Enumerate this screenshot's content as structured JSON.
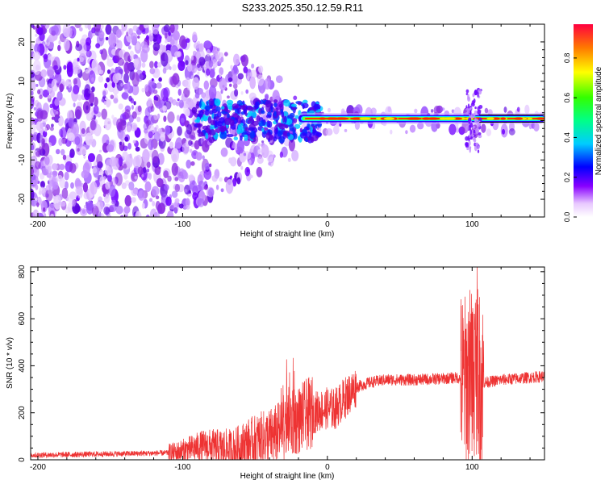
{
  "title": "S233.2025.350.12.59.R11",
  "chart_data": [
    {
      "type": "heatmap",
      "xlabel": "Height of straight line (km)",
      "ylabel": "Frequency (Hz)",
      "xlim": [
        -205,
        150
      ],
      "ylim": [
        -24.5,
        24.5
      ],
      "x_ticks": [
        -200,
        -100,
        0,
        100
      ],
      "y_ticks": [
        -20,
        -10,
        0,
        10,
        20
      ],
      "colorbar": {
        "label": "Normalized spectral amplitude",
        "range": [
          0,
          0.97
        ],
        "ticks": [
          0.0,
          0.2,
          0.4,
          0.6,
          0.8
        ],
        "tick_labels": [
          "0.0",
          "0.2",
          "0.4",
          "0.6",
          "0.8"
        ],
        "colors": [
          "#ffffff",
          "#ff00ff",
          "#0000ff",
          "#00ffff",
          "#00ff00",
          "#ffff00",
          "#ff8000",
          "#ff0000"
        ]
      },
      "features": {
        "ridge_frequency_hz": 0.5,
        "ridge_start_km": -20,
        "ridge_end_km": 150,
        "noise_region_km": [
          -205,
          -10
        ]
      }
    },
    {
      "type": "line",
      "xlabel": "Height of straight line (km)",
      "ylabel": "SNR (10 * v/v)",
      "xlim": [
        -205,
        150
      ],
      "ylim": [
        0,
        820
      ],
      "x_ticks": [
        -200,
        -100,
        0,
        100
      ],
      "y_ticks": [
        0,
        200,
        400,
        600,
        800
      ],
      "line_color": "#ee3333",
      "series": [
        {
          "x": [
            -205,
            -180,
            -150,
            -120,
            -105,
            -95,
            -85,
            -75,
            -65,
            -55,
            -45,
            -38,
            -30,
            -25,
            -20,
            -15,
            -10,
            -5,
            0,
            5,
            10,
            15,
            20,
            30,
            40,
            60,
            80,
            90,
            95,
            98,
            100,
            103,
            106,
            110,
            120,
            130,
            140,
            150
          ],
          "y": [
            20,
            22,
            25,
            28,
            30,
            45,
            60,
            50,
            40,
            70,
            90,
            100,
            130,
            150,
            170,
            190,
            200,
            210,
            220,
            215,
            250,
            280,
            310,
            330,
            340,
            340,
            345,
            350,
            330,
            360,
            350,
            400,
            330,
            330,
            340,
            345,
            350,
            355
          ]
        }
      ]
    }
  ]
}
